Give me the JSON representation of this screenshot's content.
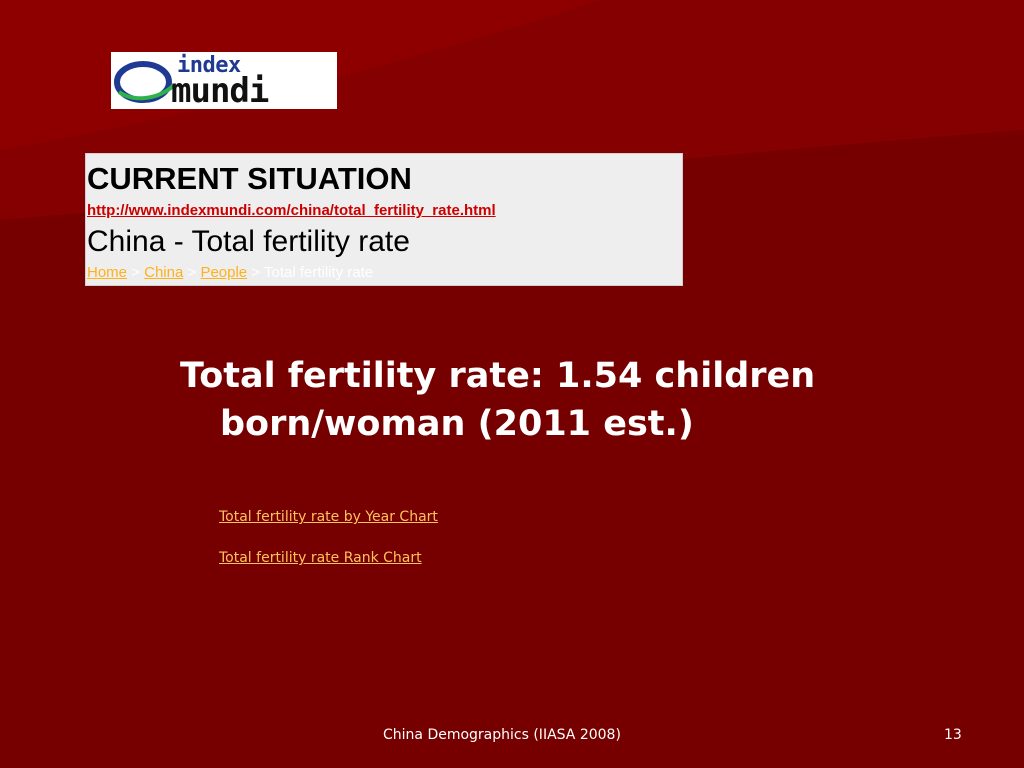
{
  "colors": {
    "background": "#760000",
    "swoosh": "#8a0000",
    "link_orange": "#ffb11b",
    "url_red": "#cc0000"
  },
  "logo": {
    "line1": "index",
    "line2": "mundi",
    "icon": "globe-orbit-icon"
  },
  "web_box": {
    "heading": "CURRENT SITUATION",
    "url": "http://www.indexmundi.com/china/total_fertility_rate.html",
    "subtitle": "China - Total fertility rate",
    "breadcrumb": {
      "home": "Home",
      "china": "China",
      "people": "People",
      "current": "Total fertility rate",
      "separator": ">"
    }
  },
  "main": {
    "text": "Total fertility rate: 1.54 children born/woman (2011 est.)"
  },
  "links": {
    "by_year": "Total fertility rate by Year Chart",
    "rank": "Total fertility rate Rank Chart"
  },
  "footer": {
    "text": "China Demographics (IIASA 2008)",
    "page": "13"
  }
}
